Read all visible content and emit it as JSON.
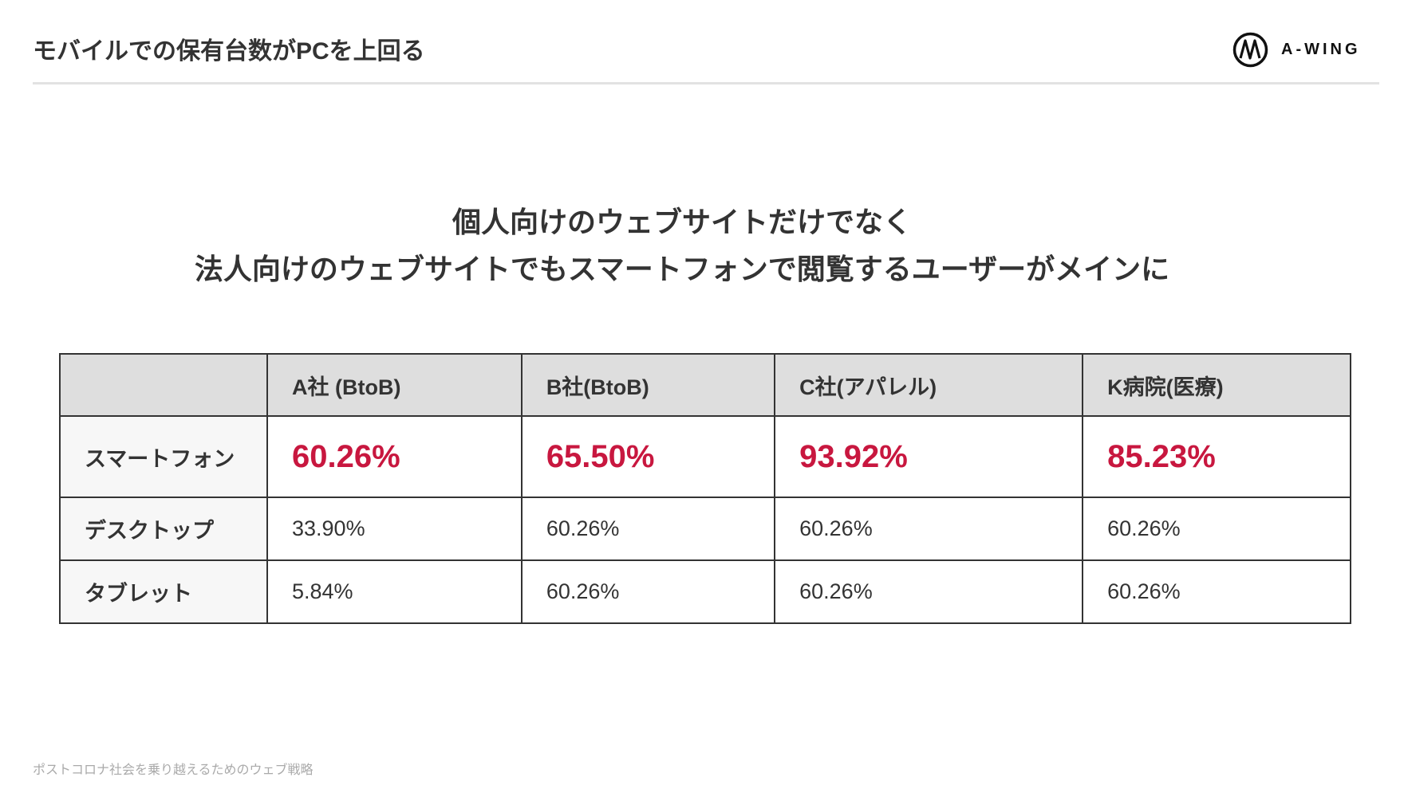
{
  "header": {
    "title": "モバイルでの保有台数がPCを上回る",
    "logo_text": "A-WING"
  },
  "headline": {
    "line1": "個人向けのウェブサイトだけでなく",
    "line2": "法人向けのウェブサイトでもスマートフォンで閲覧するユーザーがメインに"
  },
  "table": {
    "columns": [
      "",
      "A社 (BtoB)",
      "B社(BtoB)",
      "C社(アパレル)",
      "K病院(医療)"
    ],
    "rows": [
      {
        "label": "スマートフォン",
        "values": [
          "60.26%",
          "65.50%",
          "93.92%",
          "85.23%"
        ]
      },
      {
        "label": "デスクトップ",
        "values": [
          "33.90%",
          "60.26%",
          "60.26%",
          "60.26%"
        ]
      },
      {
        "label": "タブレット",
        "values": [
          "5.84%",
          "60.26%",
          "60.26%",
          "60.26%"
        ]
      }
    ]
  },
  "footer": {
    "text": "ポストコロナ社会を乗り越えるためのウェブ戦略"
  },
  "colors": {
    "accent": "#c8173f",
    "header_bg": "#dedede",
    "label_bg": "#f7f7f7",
    "border": "#333333"
  }
}
